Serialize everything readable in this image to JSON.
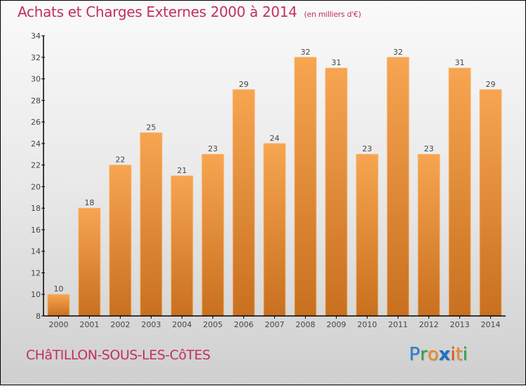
{
  "header": {
    "title": "Achats et Charges Externes 2000 à 2014",
    "subtitle": "(en milliers d'€)"
  },
  "footer": {
    "commune": "CHâTILLON-SOUS-LES-CôTES",
    "logo_letters": [
      {
        "char": "P",
        "color": "#2a7fd4"
      },
      {
        "char": "r",
        "color": "#2aa048"
      },
      {
        "char": "o",
        "color": "#f08a1c"
      },
      {
        "char": "x",
        "color": "#1f6fc8"
      },
      {
        "char": "i",
        "color": "#e84a1c"
      },
      {
        "char": "t",
        "color": "#f08a1c"
      },
      {
        "char": "i",
        "color": "#2aa048"
      }
    ]
  },
  "colors": {
    "title": "#c0305f",
    "bar_top": "#f7a551",
    "bar_bottom": "#c8701f",
    "label": "#444444"
  },
  "chart_data": {
    "type": "bar",
    "title": "Achats et Charges Externes 2000 à 2014",
    "subtitle": "(en milliers d'€)",
    "xlabel": "",
    "ylabel": "",
    "categories": [
      "2000",
      "2001",
      "2002",
      "2003",
      "2004",
      "2005",
      "2006",
      "2007",
      "2008",
      "2009",
      "2010",
      "2011",
      "2012",
      "2013",
      "2014"
    ],
    "values": [
      10,
      18,
      22,
      25,
      21,
      23,
      29,
      24,
      32,
      31,
      23,
      32,
      23,
      31,
      29
    ],
    "ylim": [
      8,
      34
    ],
    "yticks": [
      8,
      10,
      12,
      14,
      16,
      18,
      20,
      22,
      24,
      26,
      28,
      30,
      32,
      34
    ],
    "grid": false,
    "legend": "none",
    "data_labels": true
  }
}
